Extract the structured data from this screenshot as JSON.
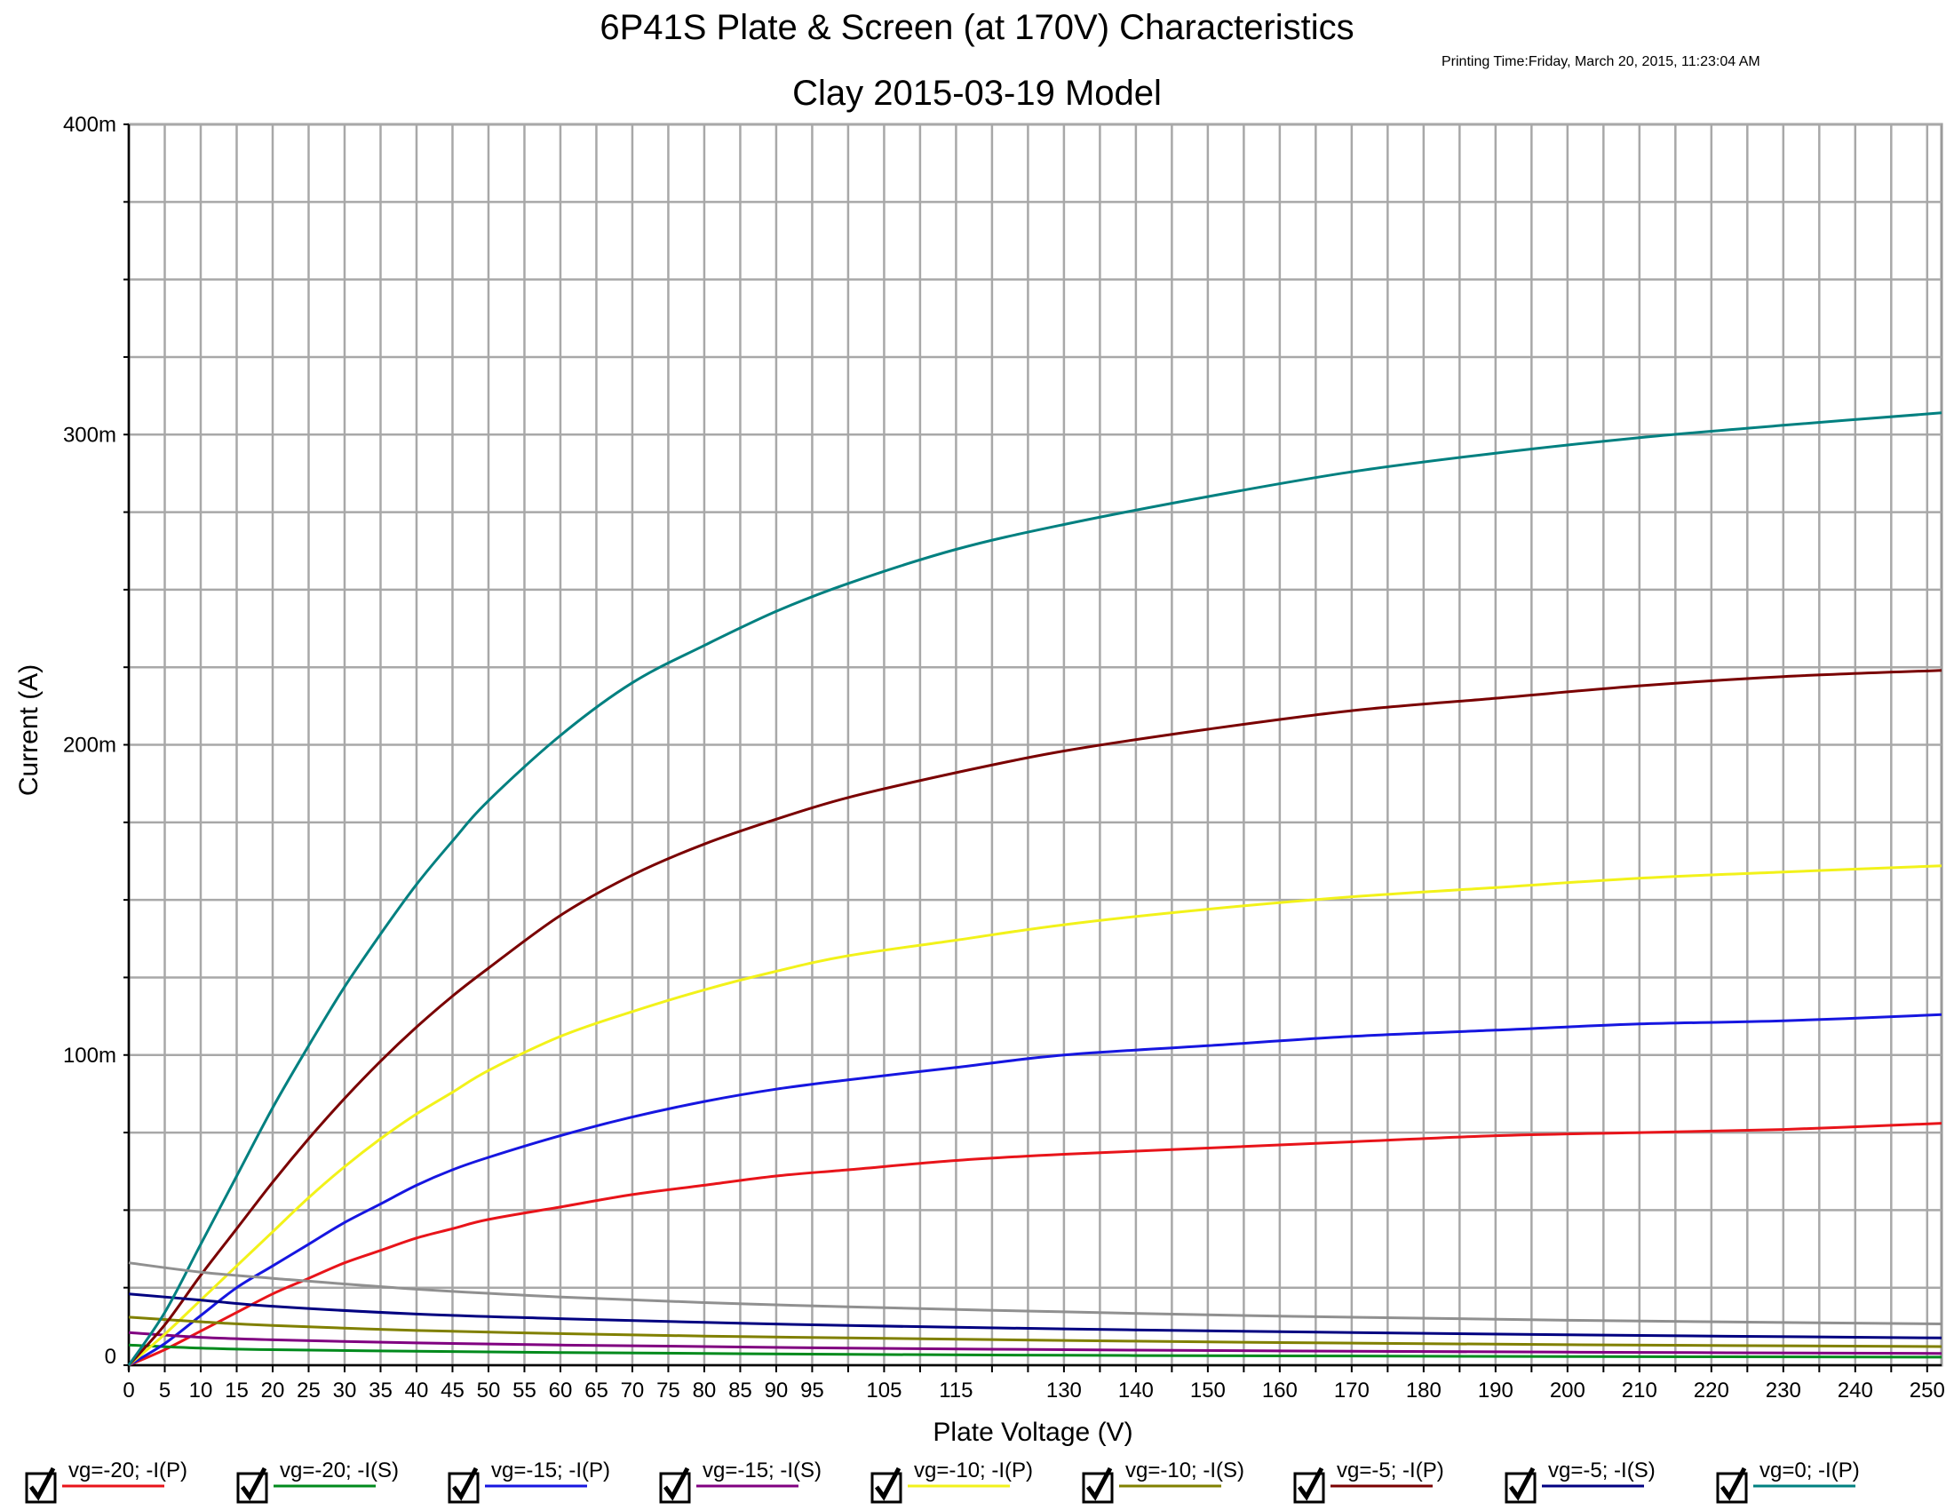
{
  "chart_data": {
    "type": "line",
    "title": "6P41S Plate & Screen (at 170V)  Characteristics",
    "subtitle": "Clay 2015-03-19 Model",
    "print_time": "Printing Time:Friday, March 20, 2015, 11:23:04 AM",
    "xlabel": "Plate Voltage (V)",
    "ylabel": "Current (A)",
    "xlim": [
      0,
      252
    ],
    "ylim": [
      0,
      0.4
    ],
    "x_ticks": [
      0,
      5,
      10,
      15,
      20,
      25,
      30,
      35,
      40,
      45,
      50,
      55,
      60,
      65,
      70,
      75,
      80,
      85,
      90,
      95,
      105,
      115,
      130,
      140,
      150,
      160,
      170,
      180,
      190,
      200,
      210,
      220,
      230,
      240,
      250
    ],
    "x_tick_labels": [
      "0",
      "5",
      "10",
      "15",
      "20",
      "25",
      "30",
      "35",
      "40",
      "45",
      "50",
      "55",
      "60",
      "65",
      "70",
      "75",
      "80",
      "85",
      "90",
      "95",
      "105",
      "115",
      "130",
      "140",
      "150",
      "160",
      "170",
      "180",
      "190",
      "200",
      "210",
      "220",
      "230",
      "240",
      "250"
    ],
    "x_grid": [
      0,
      5,
      10,
      15,
      20,
      25,
      30,
      35,
      40,
      45,
      50,
      55,
      60,
      65,
      70,
      75,
      80,
      85,
      90,
      95,
      100,
      105,
      110,
      115,
      120,
      125,
      130,
      135,
      140,
      145,
      150,
      155,
      160,
      165,
      170,
      175,
      180,
      185,
      190,
      195,
      200,
      205,
      210,
      215,
      220,
      225,
      230,
      235,
      240,
      245,
      250
    ],
    "y_ticks": [
      0,
      0.1,
      0.2,
      0.3,
      0.4
    ],
    "y_tick_labels": [
      "0",
      "100m",
      "200m",
      "300m",
      "400m"
    ],
    "y_grid": [
      0,
      0.025,
      0.05,
      0.075,
      0.1,
      0.125,
      0.15,
      0.175,
      0.2,
      0.225,
      0.25,
      0.275,
      0.3,
      0.325,
      0.35,
      0.375,
      0.4
    ],
    "grid": true,
    "legend_position": "bottom",
    "series": [
      {
        "name": "vg=-20; -I(P)",
        "color": "#e8141a",
        "checked": true,
        "x": [
          0,
          5,
          10,
          15,
          20,
          25,
          30,
          35,
          40,
          45,
          50,
          60,
          70,
          80,
          90,
          100,
          115,
          130,
          150,
          170,
          190,
          210,
          230,
          252
        ],
        "y": [
          0,
          0.005,
          0.011,
          0.017,
          0.023,
          0.028,
          0.033,
          0.037,
          0.041,
          0.044,
          0.047,
          0.051,
          0.055,
          0.058,
          0.061,
          0.063,
          0.066,
          0.068,
          0.07,
          0.072,
          0.074,
          0.075,
          0.076,
          0.078
        ]
      },
      {
        "name": "vg=-20; -I(S)",
        "color": "#008a1c",
        "checked": true,
        "x": [
          0,
          10,
          20,
          40,
          60,
          80,
          100,
          130,
          160,
          200,
          252
        ],
        "y": [
          0.0065,
          0.0055,
          0.005,
          0.0045,
          0.0041,
          0.0038,
          0.0035,
          0.0032,
          0.003,
          0.0028,
          0.0026
        ]
      },
      {
        "name": "vg=-15; -I(P)",
        "color": "#1616e0",
        "checked": true,
        "x": [
          0,
          5,
          10,
          15,
          20,
          25,
          30,
          35,
          40,
          45,
          50,
          60,
          70,
          80,
          90,
          100,
          115,
          130,
          150,
          170,
          190,
          210,
          230,
          252
        ],
        "y": [
          0,
          0.007,
          0.016,
          0.025,
          0.032,
          0.039,
          0.046,
          0.052,
          0.058,
          0.063,
          0.067,
          0.074,
          0.08,
          0.085,
          0.089,
          0.092,
          0.096,
          0.1,
          0.103,
          0.106,
          0.108,
          0.11,
          0.111,
          0.113
        ]
      },
      {
        "name": "vg=-15; -I(S)",
        "color": "#800080",
        "checked": true,
        "x": [
          0,
          10,
          20,
          40,
          60,
          80,
          100,
          130,
          160,
          200,
          252
        ],
        "y": [
          0.0105,
          0.009,
          0.0082,
          0.0072,
          0.0065,
          0.006,
          0.0055,
          0.005,
          0.0046,
          0.0042,
          0.0038
        ]
      },
      {
        "name": "vg=-10; -I(P)",
        "color": "#f2f21a",
        "checked": true,
        "x": [
          0,
          5,
          10,
          15,
          20,
          25,
          30,
          35,
          40,
          45,
          50,
          60,
          70,
          80,
          90,
          100,
          115,
          130,
          150,
          170,
          190,
          210,
          230,
          252
        ],
        "y": [
          0,
          0.01,
          0.021,
          0.032,
          0.043,
          0.054,
          0.064,
          0.073,
          0.081,
          0.088,
          0.095,
          0.106,
          0.114,
          0.121,
          0.127,
          0.132,
          0.137,
          0.142,
          0.147,
          0.151,
          0.154,
          0.157,
          0.159,
          0.161
        ]
      },
      {
        "name": "vg=-10; -I(S)",
        "color": "#808000",
        "checked": true,
        "x": [
          0,
          10,
          20,
          40,
          60,
          80,
          100,
          130,
          160,
          200,
          252
        ],
        "y": [
          0.0155,
          0.014,
          0.0128,
          0.0112,
          0.0102,
          0.0094,
          0.0088,
          0.008,
          0.0073,
          0.0066,
          0.006
        ]
      },
      {
        "name": "vg=-5; -I(P)",
        "color": "#7a0000",
        "checked": true,
        "x": [
          0,
          5,
          10,
          15,
          20,
          25,
          30,
          35,
          40,
          45,
          50,
          60,
          70,
          80,
          90,
          100,
          115,
          130,
          150,
          170,
          190,
          210,
          230,
          252
        ],
        "y": [
          0,
          0.013,
          0.029,
          0.044,
          0.059,
          0.073,
          0.086,
          0.098,
          0.109,
          0.119,
          0.128,
          0.145,
          0.158,
          0.168,
          0.176,
          0.183,
          0.191,
          0.198,
          0.205,
          0.211,
          0.215,
          0.219,
          0.222,
          0.224
        ]
      },
      {
        "name": "vg=-5; -I(S)",
        "color": "#000080",
        "checked": true,
        "x": [
          0,
          10,
          20,
          40,
          60,
          80,
          100,
          130,
          160,
          200,
          252
        ],
        "y": [
          0.023,
          0.021,
          0.019,
          0.0165,
          0.015,
          0.0138,
          0.0128,
          0.0117,
          0.0108,
          0.0098,
          0.0088
        ]
      },
      {
        "name": "vg=0; -I(P)",
        "color": "#008080",
        "checked": true,
        "x": [
          0,
          5,
          10,
          15,
          20,
          25,
          30,
          35,
          40,
          45,
          50,
          60,
          70,
          80,
          90,
          100,
          115,
          130,
          150,
          170,
          190,
          210,
          230,
          252
        ],
        "y": [
          0,
          0.017,
          0.039,
          0.061,
          0.083,
          0.103,
          0.122,
          0.139,
          0.155,
          0.169,
          0.182,
          0.203,
          0.22,
          0.232,
          0.243,
          0.252,
          0.263,
          0.271,
          0.28,
          0.288,
          0.294,
          0.299,
          0.303,
          0.307
        ]
      },
      {
        "color": "#909090",
        "x": [
          0,
          10,
          20,
          40,
          60,
          80,
          100,
          130,
          160,
          200,
          252
        ],
        "y": [
          0.033,
          0.03,
          0.028,
          0.0245,
          0.022,
          0.0202,
          0.0188,
          0.0172,
          0.0158,
          0.0145,
          0.0133
        ]
      }
    ]
  }
}
